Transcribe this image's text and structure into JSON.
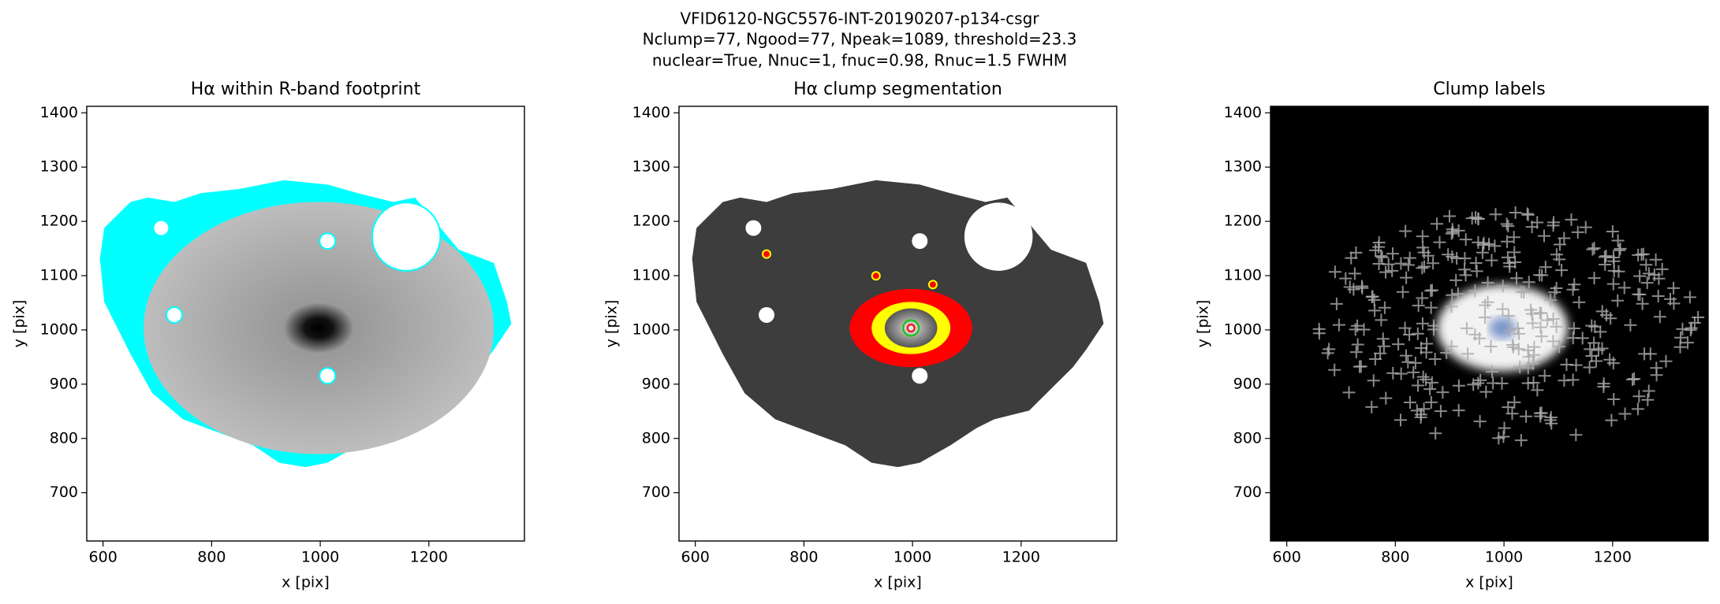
{
  "suptitle": [
    "VFID6120-NGC5576-INT-20190207-p134-csgr",
    "Nclump=77, Ngood=77, Npeak=1089, threshold=23.3",
    "nuclear=True, Nnuc=1, fnuc=0.98, Rnuc=1.5 FWHM"
  ],
  "chart_data": [
    {
      "type": "image",
      "title": "Hα within R-band footprint",
      "xlabel": "x [pix]",
      "ylabel": "y [pix]",
      "xlim": [
        570,
        1376
      ],
      "ylim": [
        611,
        1412
      ],
      "xticks": [
        600,
        800,
        1000,
        1200
      ],
      "yticks": [
        700,
        800,
        900,
        1000,
        1100,
        1200,
        1300,
        1400
      ]
    },
    {
      "type": "image",
      "title": "Hα clump segmentation",
      "xlabel": "x [pix]",
      "ylabel": "y [pix]",
      "xlim": [
        570,
        1376
      ],
      "ylim": [
        611,
        1412
      ],
      "xticks": [
        600,
        800,
        1000,
        1200
      ],
      "yticks": [
        700,
        800,
        900,
        1000,
        1100,
        1200,
        1300,
        1400
      ]
    },
    {
      "type": "image",
      "title": "Clump labels",
      "xlabel": "x [pix]",
      "ylabel": "y [pix]",
      "xlim": [
        570,
        1376
      ],
      "ylim": [
        611,
        1412
      ],
      "xticks": [
        600,
        800,
        1000,
        1200
      ],
      "yticks": [
        700,
        800,
        900,
        1000,
        1100,
        1200,
        1300,
        1400
      ]
    }
  ]
}
